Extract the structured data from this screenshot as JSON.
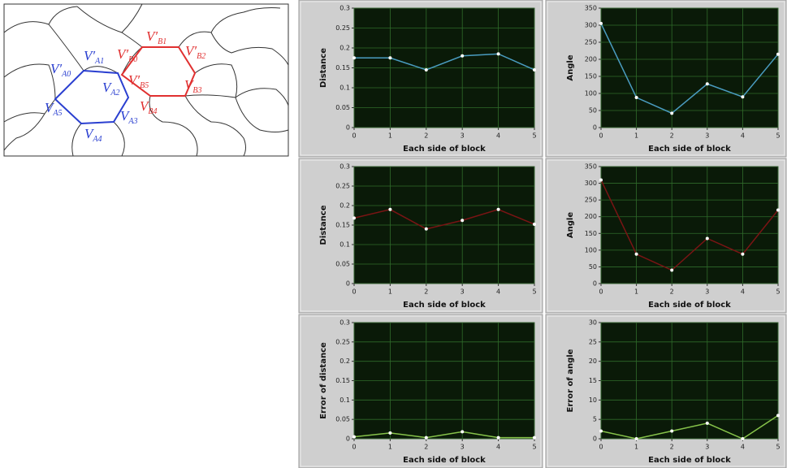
{
  "diagram": {
    "labels": [
      {
        "text": "V′",
        "sub": "A0"
      },
      {
        "text": "V′",
        "sub": "A1"
      },
      {
        "text": "V",
        "sub": "A2"
      },
      {
        "text": "V",
        "sub": "A3"
      },
      {
        "text": "V",
        "sub": "A4"
      },
      {
        "text": "V",
        "sub": "A5"
      },
      {
        "text": "V′",
        "sub": "B0"
      },
      {
        "text": "V′",
        "sub": "B1"
      },
      {
        "text": "V′",
        "sub": "B2"
      },
      {
        "text": "V",
        "sub": "B3"
      },
      {
        "text": "V",
        "sub": "B4"
      },
      {
        "text": "V′",
        "sub": "B5"
      }
    ]
  },
  "chart_data": [
    {
      "type": "line",
      "xlabel": "Each side of block",
      "ylabel": "Distance",
      "x": [
        0,
        1,
        2,
        3,
        4,
        5
      ],
      "values": [
        0.175,
        0.175,
        0.145,
        0.18,
        0.185,
        0.145
      ],
      "color": "#4a9cc0",
      "xlim": [
        0,
        5
      ],
      "xticks": [
        0,
        1,
        2,
        3,
        4,
        5
      ],
      "ylim": [
        0,
        0.3
      ],
      "yticks": [
        0,
        0.05,
        0.1,
        0.15,
        0.2,
        0.25,
        0.3
      ],
      "grid": true
    },
    {
      "type": "line",
      "xlabel": "Each side of block",
      "ylabel": "Angle",
      "x": [
        0,
        1,
        2,
        3,
        4,
        5
      ],
      "values": [
        305,
        88,
        42,
        128,
        90,
        215
      ],
      "color": "#4a9cc0",
      "xlim": [
        0,
        5
      ],
      "xticks": [
        0,
        1,
        2,
        3,
        4,
        5
      ],
      "ylim": [
        0,
        350
      ],
      "yticks": [
        0,
        50,
        100,
        150,
        200,
        250,
        300,
        350
      ],
      "grid": true
    },
    {
      "type": "line",
      "xlabel": "Each side of block",
      "ylabel": "Distance",
      "x": [
        0,
        1,
        2,
        3,
        4,
        5
      ],
      "values": [
        0.168,
        0.19,
        0.14,
        0.162,
        0.19,
        0.152
      ],
      "color": "#7a1414",
      "xlim": [
        0,
        5
      ],
      "xticks": [
        0,
        1,
        2,
        3,
        4,
        5
      ],
      "ylim": [
        0,
        0.3
      ],
      "yticks": [
        0,
        0.05,
        0.1,
        0.15,
        0.2,
        0.25,
        0.3
      ],
      "grid": true
    },
    {
      "type": "line",
      "xlabel": "Each side of block",
      "ylabel": "Angle",
      "x": [
        0,
        1,
        2,
        3,
        4,
        5
      ],
      "values": [
        310,
        88,
        40,
        135,
        88,
        220
      ],
      "color": "#7a1414",
      "xlim": [
        0,
        5
      ],
      "xticks": [
        0,
        1,
        2,
        3,
        4,
        5
      ],
      "ylim": [
        0,
        350
      ],
      "yticks": [
        0,
        50,
        100,
        150,
        200,
        250,
        300,
        350
      ],
      "grid": true
    },
    {
      "type": "line",
      "xlabel": "Each side of block",
      "ylabel": "Error of distance",
      "x": [
        0,
        1,
        2,
        3,
        4,
        5
      ],
      "values": [
        0.005,
        0.015,
        0.003,
        0.018,
        0.003,
        0.003
      ],
      "color": "#86c24a",
      "xlim": [
        0,
        5
      ],
      "xticks": [
        0,
        1,
        2,
        3,
        4,
        5
      ],
      "ylim": [
        0,
        0.3
      ],
      "yticks": [
        0,
        0.05,
        0.1,
        0.15,
        0.2,
        0.25,
        0.3
      ],
      "grid": true
    },
    {
      "type": "line",
      "xlabel": "Each side of block",
      "ylabel": "Error of angle",
      "x": [
        0,
        1,
        2,
        3,
        4,
        5
      ],
      "values": [
        2,
        0,
        2,
        4,
        0,
        6
      ],
      "color": "#86c24a",
      "xlim": [
        0,
        5
      ],
      "xticks": [
        0,
        1,
        2,
        3,
        4,
        5
      ],
      "ylim": [
        0,
        30
      ],
      "yticks": [
        0,
        5,
        10,
        15,
        20,
        25,
        30
      ],
      "grid": true
    }
  ]
}
